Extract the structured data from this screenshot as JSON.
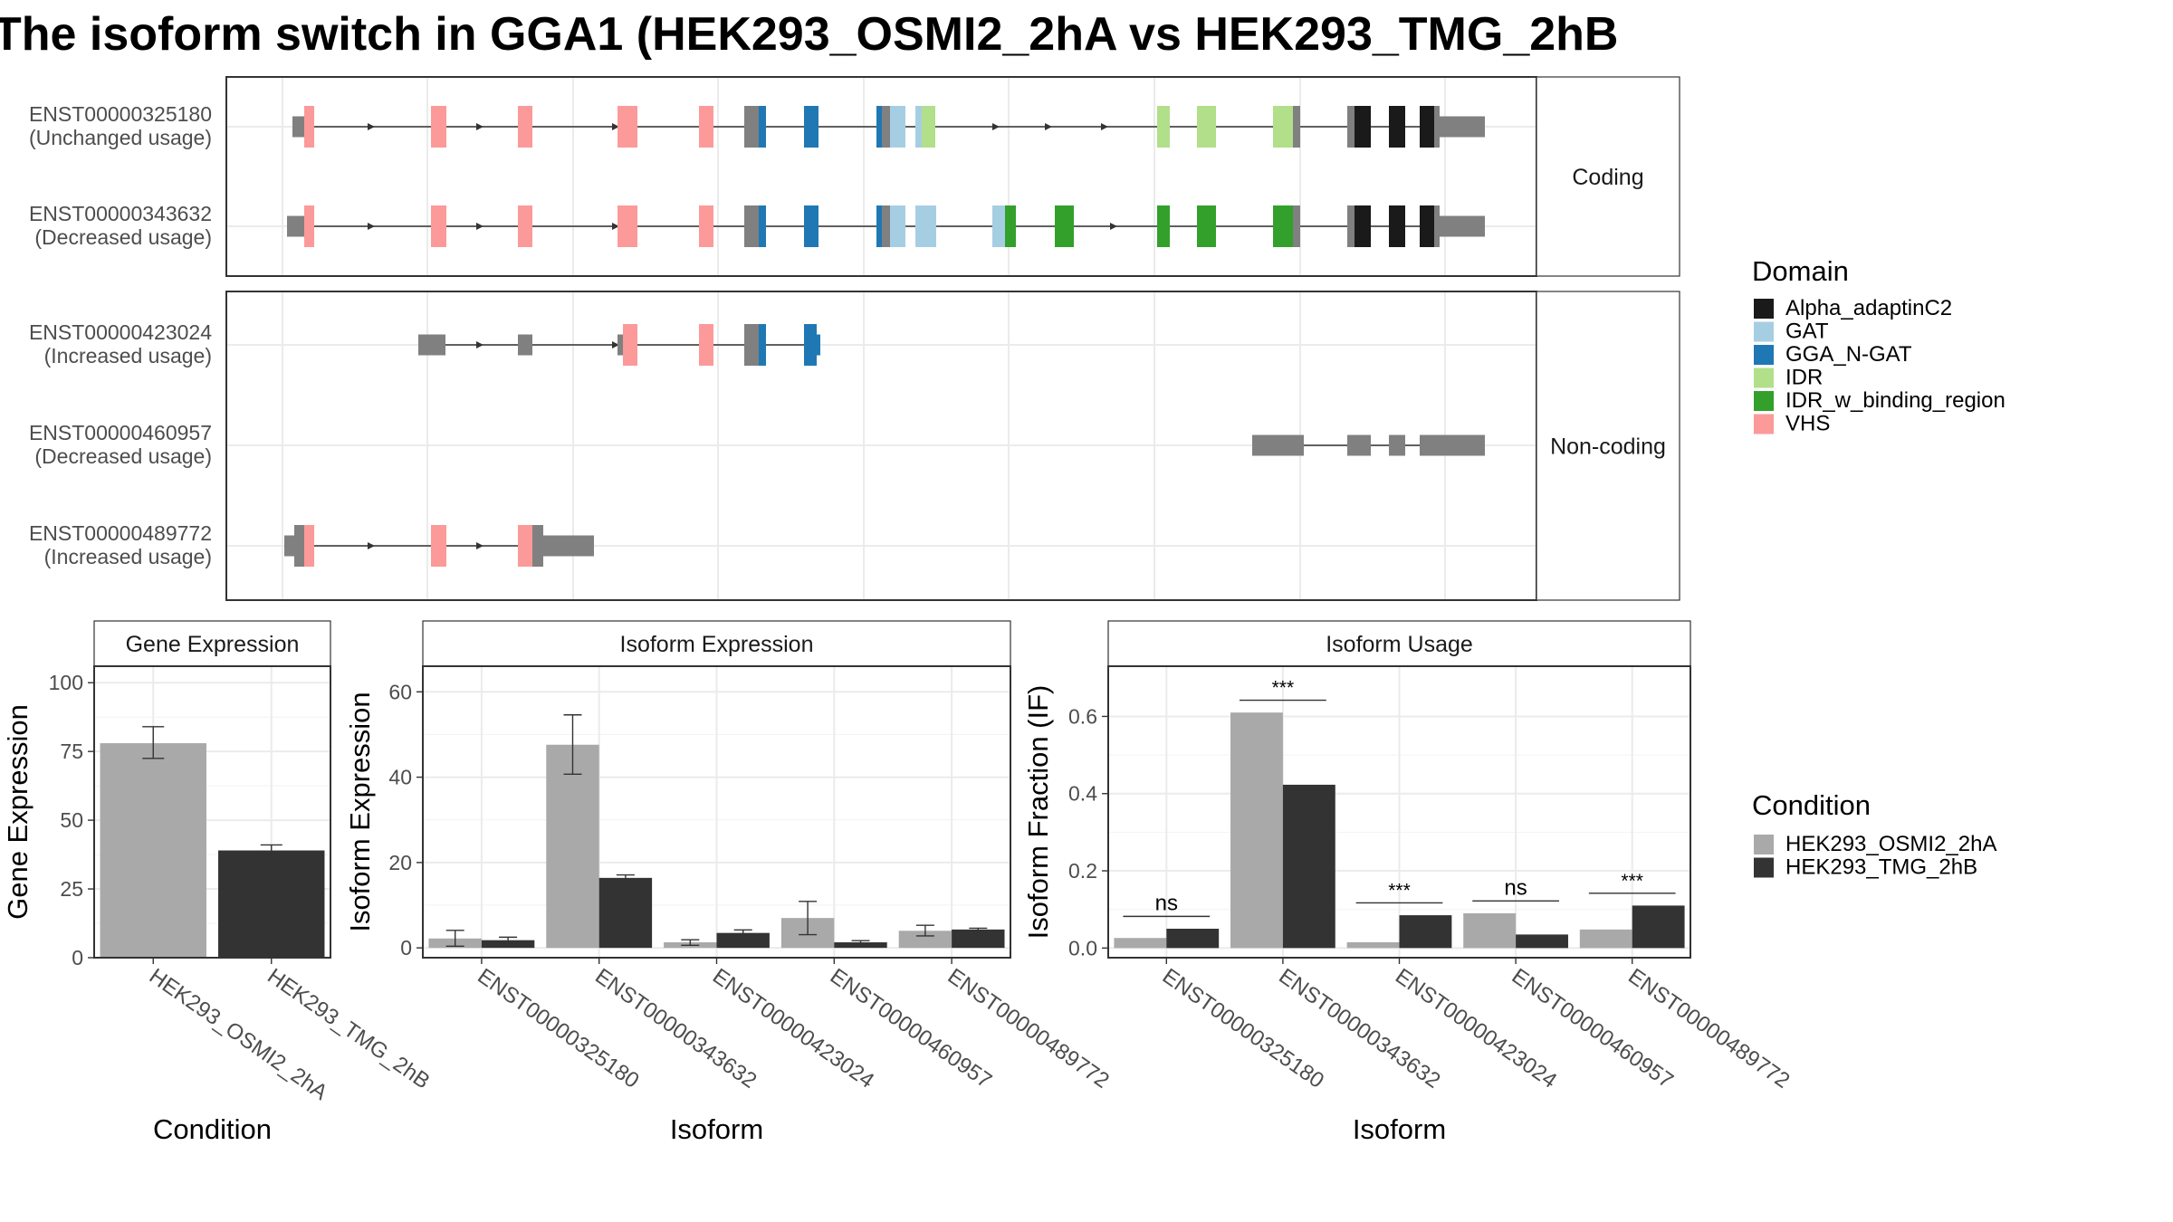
{
  "title": "The isoform switch in GGA1 (HEK293_OSMI2_2hA vs HEK293_TMG_2hB",
  "structure": {
    "coding_label": "Coding",
    "noncoding_label": "Non-coding",
    "isoforms": [
      {
        "id": "ENST00000325180",
        "usage": "(Unchanged usage)",
        "group": "coding"
      },
      {
        "id": "ENST00000343632",
        "usage": "(Decreased usage)",
        "group": "coding"
      },
      {
        "id": "ENST00000423024",
        "usage": "(Increased usage)",
        "group": "noncoding"
      },
      {
        "id": "ENST00000460957",
        "usage": "(Decreased usage)",
        "group": "noncoding"
      },
      {
        "id": "ENST00000489772",
        "usage": "(Increased usage)",
        "group": "noncoding"
      }
    ]
  },
  "legend_domain": {
    "title": "Domain",
    "items": [
      {
        "name": "Alpha_adaptinC2",
        "color": "#1a1a1a"
      },
      {
        "name": "GAT",
        "color": "#a6cee3"
      },
      {
        "name": "GGA_N-GAT",
        "color": "#1f78b4"
      },
      {
        "name": "IDR",
        "color": "#b2df8a"
      },
      {
        "name": "IDR_w_binding_region",
        "color": "#33a02c"
      },
      {
        "name": "VHS",
        "color": "#fb9a99"
      }
    ]
  },
  "legend_condition": {
    "title": "Condition",
    "items": [
      {
        "name": "HEK293_OSMI2_2hA",
        "color": "#a9a9a9"
      },
      {
        "name": "HEK293_TMG_2hB",
        "color": "#333333"
      }
    ]
  },
  "chart_data": [
    {
      "type": "bar",
      "title": "Gene Expression",
      "xlabel": "Condition",
      "ylabel": "Gene Expression",
      "categories": [
        "HEK293_OSMI2_2hA",
        "HEK293_TMG_2hB"
      ],
      "values": [
        78,
        39
      ],
      "errors": [
        [
          72.5,
          84
        ],
        [
          37.5,
          41
        ]
      ],
      "ylim": [
        0,
        106
      ],
      "yticks": [
        0,
        25,
        50,
        75,
        100
      ]
    },
    {
      "type": "bar",
      "title": "Isoform Expression",
      "xlabel": "Isoform",
      "ylabel": "Isoform Expression",
      "categories": [
        "ENST00000325180",
        "ENST00000343632",
        "ENST00000423024",
        "ENST00000460957",
        "ENST00000489772"
      ],
      "series": [
        {
          "name": "HEK293_OSMI2_2hA",
          "values": [
            2.2,
            47.6,
            1.3,
            7,
            4
          ],
          "errors": [
            [
              0.4,
              4.1
            ],
            [
              40.7,
              54.6
            ],
            [
              0.6,
              1.9
            ],
            [
              3.1,
              10.9
            ],
            [
              2.8,
              5.3
            ]
          ]
        },
        {
          "name": "HEK293_TMG_2hB",
          "values": [
            1.8,
            16.4,
            3.5,
            1.3,
            4.3
          ],
          "errors": [
            [
              1.2,
              2.5
            ],
            [
              15.7,
              17.1
            ],
            [
              2.9,
              4.2
            ],
            [
              1.0,
              1.7
            ],
            [
              3.9,
              4.6
            ]
          ]
        }
      ],
      "ylim": [
        -2.3,
        66
      ],
      "yticks": [
        0,
        20,
        40,
        60
      ]
    },
    {
      "type": "bar",
      "title": "Isoform Usage",
      "xlabel": "Isoform",
      "ylabel": "Isoform Fraction (IF)",
      "categories": [
        "ENST00000325180",
        "ENST00000343632",
        "ENST00000423024",
        "ENST00000460957",
        "ENST00000489772"
      ],
      "series": [
        {
          "name": "HEK293_OSMI2_2hA",
          "values": [
            0.026,
            0.61,
            0.015,
            0.09,
            0.048
          ]
        },
        {
          "name": "HEK293_TMG_2hB",
          "values": [
            0.05,
            0.423,
            0.085,
            0.035,
            0.11
          ]
        }
      ],
      "significance": [
        "ns",
        "***",
        "***",
        "ns",
        "***"
      ],
      "sig_y": [
        0.082,
        0.642,
        0.117,
        0.122,
        0.142
      ],
      "ylim": [
        -0.025,
        0.73
      ],
      "yticks": [
        0.0,
        0.2,
        0.4,
        0.6
      ]
    }
  ]
}
